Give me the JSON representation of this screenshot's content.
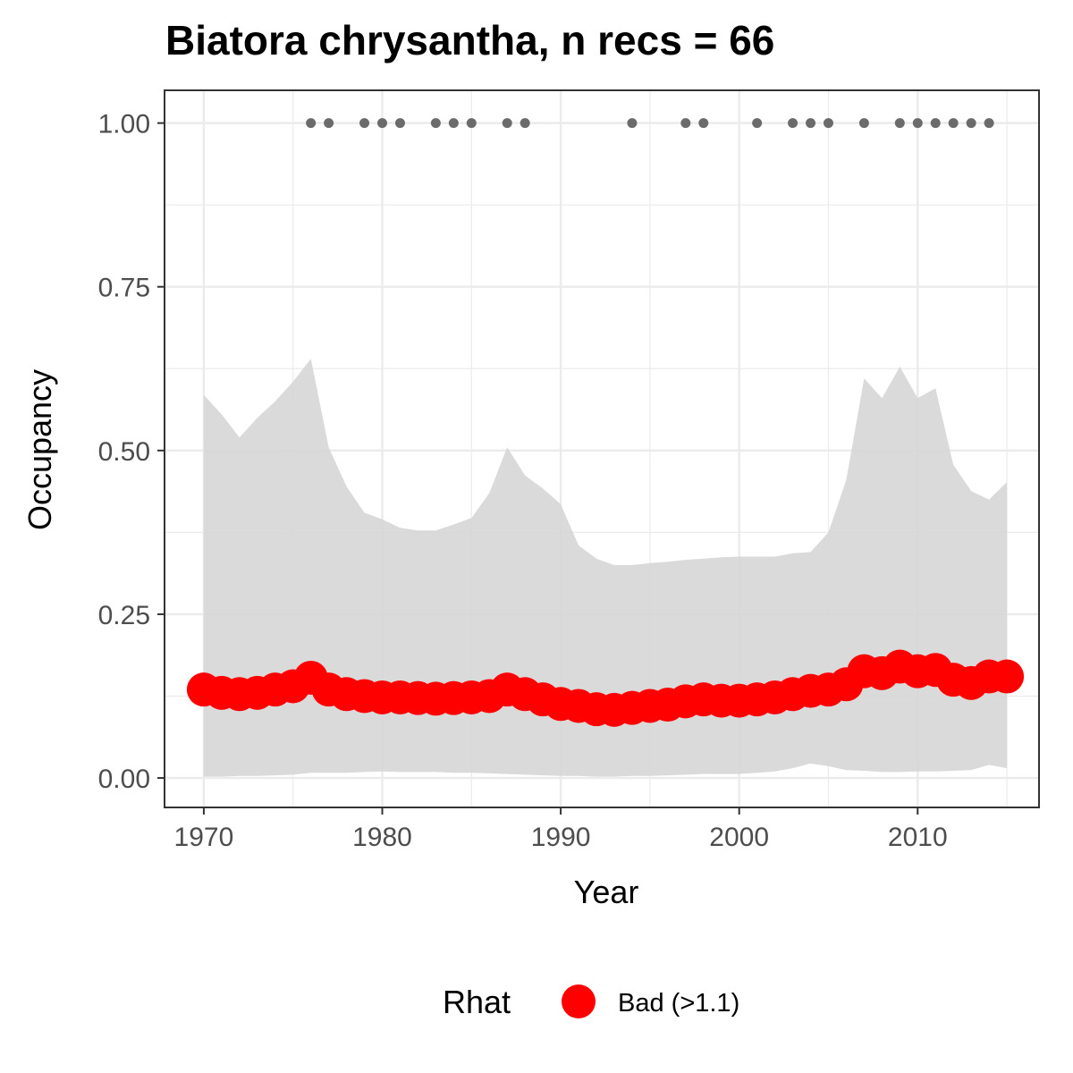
{
  "chart_data": {
    "type": "line",
    "title": "Biatora chrysantha, n recs = 66",
    "xlabel": "Year",
    "ylabel": "Occupancy",
    "xlim": [
      1967.8,
      2016.8
    ],
    "ylim": [
      -0.045,
      1.05
    ],
    "x_ticks": [
      1970,
      1980,
      1990,
      2000,
      2010
    ],
    "x_tick_labels": [
      "1970",
      "1980",
      "1990",
      "2000",
      "2010"
    ],
    "y_ticks": [
      0,
      0.25,
      0.5,
      0.75,
      1
    ],
    "y_tick_labels": [
      "0.00",
      "0.25",
      "0.50",
      "0.75",
      "1.00"
    ],
    "grid": true,
    "x": [
      1970,
      1971,
      1972,
      1973,
      1974,
      1975,
      1976,
      1977,
      1978,
      1979,
      1980,
      1981,
      1982,
      1983,
      1984,
      1985,
      1986,
      1987,
      1988,
      1989,
      1990,
      1991,
      1992,
      1993,
      1994,
      1995,
      1996,
      1997,
      1998,
      1999,
      2000,
      2001,
      2002,
      2003,
      2004,
      2005,
      2006,
      2007,
      2008,
      2009,
      2010,
      2011,
      2012,
      2013,
      2014,
      2015
    ],
    "series": [
      {
        "name": "Bad (>1.1)",
        "values": [
          0.135,
          0.13,
          0.128,
          0.13,
          0.135,
          0.14,
          0.153,
          0.135,
          0.128,
          0.125,
          0.123,
          0.123,
          0.122,
          0.121,
          0.122,
          0.123,
          0.125,
          0.135,
          0.128,
          0.12,
          0.113,
          0.11,
          0.105,
          0.104,
          0.107,
          0.11,
          0.112,
          0.117,
          0.12,
          0.118,
          0.118,
          0.12,
          0.123,
          0.128,
          0.133,
          0.135,
          0.143,
          0.163,
          0.16,
          0.17,
          0.163,
          0.165,
          0.15,
          0.145,
          0.155,
          0.155
        ]
      }
    ],
    "ribbon": {
      "lower": [
        0.002,
        0.002,
        0.003,
        0.003,
        0.004,
        0.005,
        0.008,
        0.008,
        0.008,
        0.009,
        0.01,
        0.009,
        0.009,
        0.009,
        0.008,
        0.008,
        0.007,
        0.006,
        0.005,
        0.004,
        0.003,
        0.003,
        0.002,
        0.002,
        0.003,
        0.003,
        0.004,
        0.005,
        0.006,
        0.006,
        0.006,
        0.008,
        0.01,
        0.015,
        0.022,
        0.018,
        0.012,
        0.011,
        0.009,
        0.009,
        0.01,
        0.01,
        0.011,
        0.012,
        0.02,
        0.015
      ],
      "upper": [
        0.585,
        0.555,
        0.52,
        0.55,
        0.575,
        0.605,
        0.64,
        0.505,
        0.445,
        0.405,
        0.395,
        0.382,
        0.378,
        0.378,
        0.387,
        0.397,
        0.435,
        0.505,
        0.462,
        0.442,
        0.418,
        0.355,
        0.335,
        0.325,
        0.325,
        0.328,
        0.33,
        0.333,
        0.335,
        0.337,
        0.338,
        0.338,
        0.338,
        0.343,
        0.345,
        0.375,
        0.455,
        0.61,
        0.58,
        0.628,
        0.58,
        0.595,
        0.478,
        0.438,
        0.425,
        0.452
      ],
      "color": "#d6d6d6"
    },
    "records_years": [
      1976,
      1977,
      1979,
      1980,
      1981,
      1983,
      1984,
      1985,
      1987,
      1988,
      1994,
      1997,
      1998,
      2001,
      2003,
      2004,
      2005,
      2007,
      2009,
      2010,
      2011,
      2012,
      2013,
      2014
    ],
    "records_value": 1.0,
    "legend": {
      "title": "Rhat",
      "placement": "bottom",
      "items": [
        {
          "label": "Bad (>1.1)",
          "color": "#ff0000"
        }
      ]
    },
    "colors": {
      "line_points": "#ff0000",
      "record_points": "#6b6b6b",
      "ribbon": "#d6d6d6",
      "grid": "#ebebeb",
      "panel_border": "#333333"
    }
  }
}
